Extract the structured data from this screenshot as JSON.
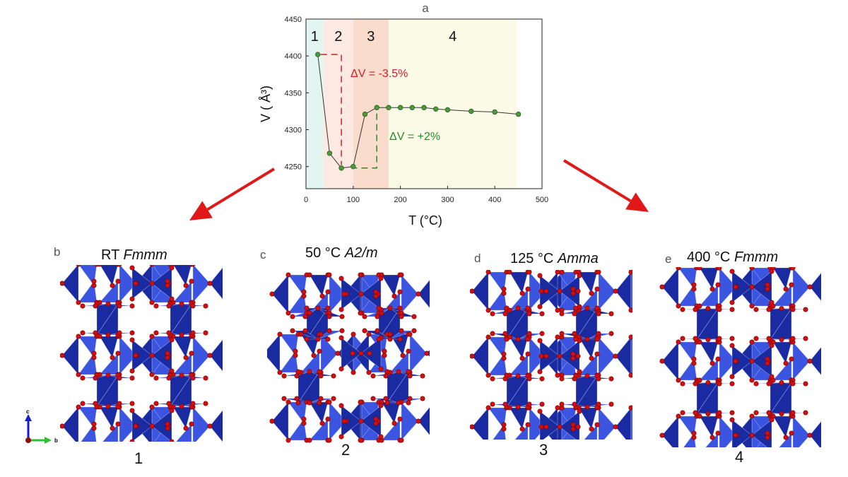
{
  "figure": {
    "panel_a_letter": "a",
    "panels": [
      {
        "letter": "b",
        "temp": "RT",
        "space_group": "Fmmm",
        "phase_number": "1"
      },
      {
        "letter": "c",
        "temp": "50 °C",
        "space_group": "A2/m",
        "phase_number": "2"
      },
      {
        "letter": "d",
        "temp": "125 °C",
        "space_group": "Amma",
        "phase_number": "3"
      },
      {
        "letter": "e",
        "temp": "400 °C",
        "space_group": "Fmmm",
        "phase_number": "4"
      }
    ],
    "axis_indicator": {
      "vertical": "c",
      "horizontal": "b"
    },
    "colors": {
      "arrow": "#e01818",
      "tetra_dark": "#1a2aa0",
      "tetra_light": "#3b55e0",
      "oxygen": "#d01010",
      "point": "#4a9a3a",
      "delta_neg": "#d0202a",
      "delta_pos": "#2a8a2a"
    }
  },
  "chart_data": {
    "type": "line",
    "title": "a",
    "xlabel": "T (°C)",
    "ylabel": "V ( Å³)",
    "xlim": [
      0,
      500
    ],
    "ylim": [
      4220,
      4450
    ],
    "xticks": [
      0,
      100,
      200,
      300,
      400,
      500
    ],
    "yticks": [
      4250,
      4300,
      4350,
      4400,
      4450
    ],
    "grid": false,
    "x": [
      25,
      50,
      75,
      100,
      125,
      150,
      175,
      200,
      225,
      250,
      275,
      300,
      350,
      400,
      450
    ],
    "series": [
      {
        "name": "V",
        "values": [
          4402,
          4268,
          4248,
          4250,
          4321,
          4330,
          4330,
          4330,
          4330,
          4330,
          4328,
          4327,
          4325,
          4324,
          4321
        ]
      }
    ],
    "regions": [
      {
        "label": "1",
        "x_start": 0,
        "x_end": 37,
        "color": "#e3f5f0"
      },
      {
        "label": "2",
        "x_start": 37,
        "x_end": 100,
        "color": "#fbe9e2"
      },
      {
        "label": "3",
        "x_start": 100,
        "x_end": 175,
        "color": "#f9dccc"
      },
      {
        "label": "4",
        "x_start": 175,
        "x_end": 447,
        "color": "#fbfbe8"
      }
    ],
    "annotations": [
      {
        "text": "ΔV = -3.5%",
        "color": "#d0202a"
      },
      {
        "text": "ΔV = +2%",
        "color": "#2a8a2a"
      }
    ]
  }
}
